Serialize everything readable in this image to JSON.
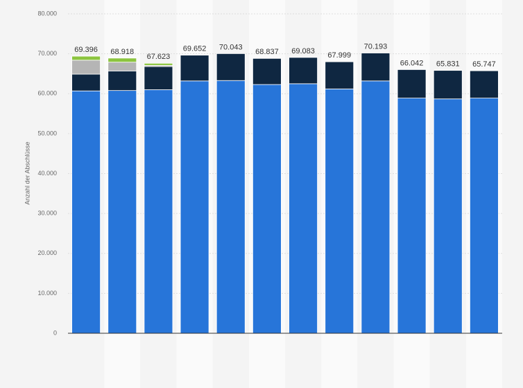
{
  "chart_data": {
    "type": "stacked_bar",
    "y_axis_label": "Anzahl der Abschlüsse",
    "categories": [
      null,
      null,
      null,
      null,
      null,
      null,
      null,
      null,
      null,
      null,
      null,
      null
    ],
    "series": [
      {
        "color": "#2775d9",
        "values": [
          60700,
          60800,
          61000,
          63200,
          63300,
          62300,
          62500,
          61200,
          63200,
          58900,
          58700,
          58900
        ]
      },
      {
        "color": "#0f2741",
        "values": [
          4200,
          4900,
          5800,
          6452,
          6743,
          6537,
          6583,
          6799,
          6993,
          7142,
          7131,
          6847
        ]
      },
      {
        "color": "#b5b5b5",
        "values": [
          3500,
          2200,
          300,
          null,
          null,
          null,
          null,
          null,
          null,
          null,
          null,
          null
        ]
      },
      {
        "color": "#8cc43f",
        "values": [
          996,
          1018,
          523,
          null,
          null,
          null,
          null,
          null,
          null,
          null,
          null,
          null
        ]
      }
    ],
    "totals": {
      "values": [
        69396,
        68918,
        67623,
        69652,
        70043,
        68837,
        69083,
        67999,
        70193,
        66042,
        65831,
        65747
      ],
      "value_labels": [
        "69.396",
        "68.918",
        "67.623",
        "69.652",
        "70.043",
        "68.837",
        "69.083",
        "67.999",
        "70.193",
        "66.042",
        "65.831",
        "65.747"
      ]
    },
    "ylim": [
      0,
      80000
    ],
    "yticks": [
      0,
      {
        "value": 10000,
        "label": "10.000"
      },
      {
        "value": 20000,
        "label": "20.000"
      },
      {
        "value": 30000,
        "label": "30.000"
      },
      {
        "value": 40000,
        "label": "40.000"
      },
      {
        "value": 50000,
        "label": "50.000"
      },
      {
        "value": 60000,
        "label": "60.000"
      },
      {
        "value": 70000,
        "label": "70.000"
      },
      {
        "value": 80000,
        "label": "80.000"
      }
    ],
    "grid": true
  }
}
